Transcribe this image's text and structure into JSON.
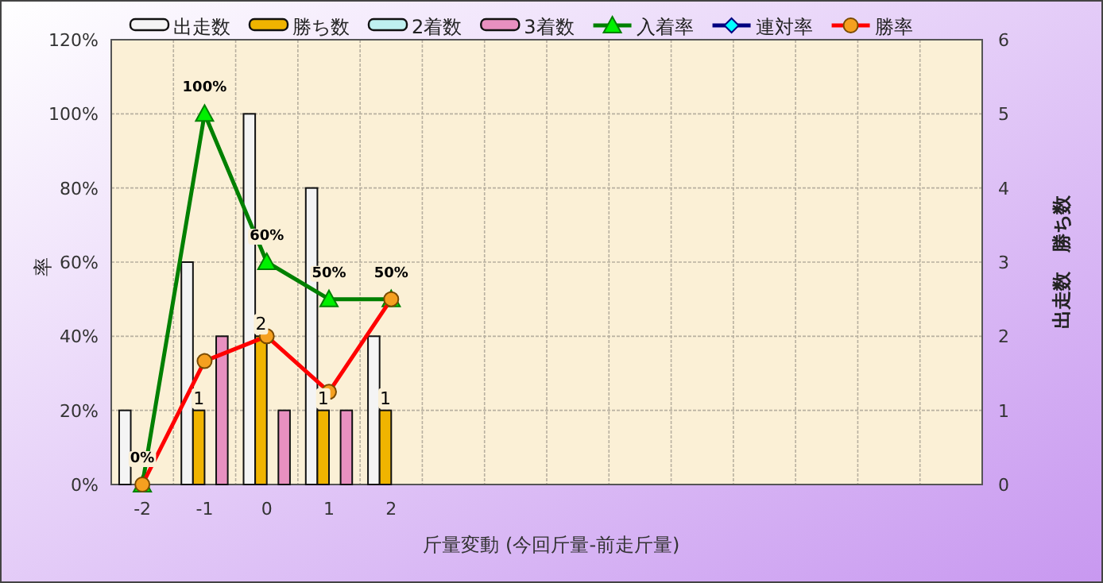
{
  "chart_data": {
    "type": "bar",
    "xlabel": "斤量変動 (今回斤量-前走斤量)",
    "ylabel": "率",
    "y2label": "出走数　勝ち数",
    "categories": [
      "-2",
      "-1",
      "0",
      "1",
      "2",
      null,
      null,
      null,
      null,
      null,
      null,
      null,
      null,
      null
    ],
    "series": [
      {
        "name": "出走数",
        "axis": "y2",
        "color": "#f4f4f4",
        "values": [
          1,
          3,
          5,
          4,
          2,
          null,
          null,
          null,
          null,
          null,
          null,
          null,
          null,
          null
        ]
      },
      {
        "name": "勝ち数",
        "axis": "y2",
        "color": "#f0b400",
        "values": [
          0,
          1,
          2,
          1,
          1,
          null,
          null,
          null,
          null,
          null,
          null,
          null,
          null,
          null
        ],
        "value_labels": [
          null,
          "1",
          "2",
          "1",
          "1",
          null,
          null,
          null,
          null,
          null,
          null,
          null,
          null,
          null
        ]
      },
      {
        "name": "2着数",
        "axis": "y2",
        "color": "#bff0f0",
        "values": [
          0,
          0,
          0,
          0,
          0,
          null,
          null,
          null,
          null,
          null,
          null,
          null,
          null,
          null
        ]
      },
      {
        "name": "3着数",
        "axis": "y2",
        "color": "#e890c0",
        "values": [
          0,
          2,
          1,
          1,
          0,
          null,
          null,
          null,
          null,
          null,
          null,
          null,
          null,
          null
        ]
      },
      {
        "name": "入着率",
        "type": "line",
        "axis": "y",
        "color": "#008000",
        "marker": "triangle",
        "values": [
          0,
          100,
          60,
          50,
          50,
          null,
          null,
          null,
          null,
          null,
          null,
          null,
          null,
          null
        ],
        "value_labels": [
          "0%",
          "100%",
          "60%",
          "50%",
          "50%",
          null,
          null,
          null,
          null,
          null,
          null,
          null,
          null,
          null
        ]
      },
      {
        "name": "連対率",
        "type": "line",
        "axis": "y",
        "color": "#000080",
        "marker": "diamond",
        "values": [
          null,
          null,
          null,
          null,
          null,
          null,
          null,
          null,
          null,
          null,
          null,
          null,
          null,
          null
        ]
      },
      {
        "name": "勝率",
        "type": "line",
        "axis": "y",
        "color": "#ff0000",
        "marker": "circle",
        "values": [
          0,
          33.3,
          40,
          25,
          50,
          null,
          null,
          null,
          null,
          null,
          null,
          null,
          null,
          null
        ]
      }
    ],
    "ylim": [
      0,
      120
    ],
    "yticks": [
      {
        "value": 0,
        "label": "0%"
      },
      {
        "value": 20,
        "label": "20%"
      },
      {
        "value": 40,
        "label": "40%"
      },
      {
        "value": 60,
        "label": "60%"
      },
      {
        "value": 80,
        "label": "80%"
      },
      {
        "value": 100,
        "label": "100%"
      },
      {
        "value": 120,
        "label": "120%"
      }
    ],
    "y2lim": [
      0,
      6
    ],
    "y2ticks": [
      0,
      1,
      2,
      3,
      4,
      5,
      6
    ],
    "grid": true,
    "legend": "top"
  }
}
